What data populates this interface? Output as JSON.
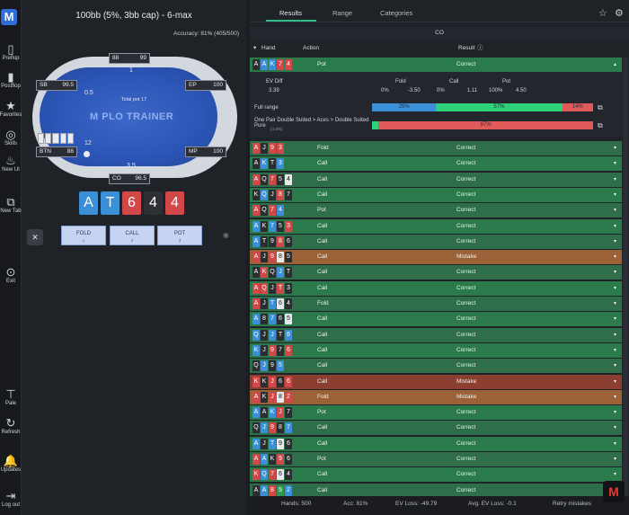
{
  "rail": {
    "logo": "M",
    "items": [
      {
        "label": "Preflop",
        "icon": "preflop-icon",
        "glyph": "▯"
      },
      {
        "label": "Postflop",
        "icon": "postflop-icon",
        "glyph": "▮"
      },
      {
        "label": "Favorites",
        "icon": "star-icon",
        "glyph": "★"
      },
      {
        "label": "Skills",
        "icon": "target-icon",
        "glyph": "◎"
      },
      {
        "label": "New UI",
        "icon": "flame-icon",
        "glyph": "♨"
      },
      {
        "label": "New Tab",
        "icon": "external-icon",
        "glyph": "⧉"
      },
      {
        "label": "Exit",
        "icon": "exit-icon",
        "glyph": "⊙"
      },
      {
        "label": "Pale",
        "icon": "paint-icon",
        "glyph": "⊤"
      },
      {
        "label": "Refresh",
        "icon": "refresh-icon",
        "glyph": "↻"
      },
      {
        "label": "Updates",
        "icon": "bell-icon",
        "glyph": "🔔"
      },
      {
        "label": "Log out",
        "icon": "logout-icon",
        "glyph": "⇥"
      }
    ]
  },
  "game": {
    "title": "100bb (5%, 3bb cap) - 6-max",
    "accuracy": "Accuracy: 81% (405/500)",
    "total_pot": "Total pot 17",
    "logo": "PLO TRAINER",
    "seats": {
      "top": {
        "name": "88",
        "stack": "99"
      },
      "sb": {
        "name": "SB",
        "stack": "99.5"
      },
      "ep": {
        "name": "EP",
        "stack": "100"
      },
      "mp": {
        "name": "MP",
        "stack": "100"
      },
      "btn": {
        "name": "BTN",
        "stack": "88"
      },
      "co": {
        "name": "CO",
        "stack": "96.5"
      }
    },
    "bets": {
      "top": "1",
      "sb": "0.5",
      "btn": "12",
      "co": "3.5"
    },
    "hand": [
      {
        "rank": "A",
        "color": "b"
      },
      {
        "rank": "T",
        "color": "b"
      },
      {
        "rank": "6",
        "color": "r"
      },
      {
        "rank": "4",
        "color": "k"
      },
      {
        "rank": "4",
        "color": "r"
      }
    ],
    "actions": [
      {
        "label": "FOLD",
        "key": "1"
      },
      {
        "label": "CALL",
        "key": "2"
      },
      {
        "label": "POT",
        "key": "3"
      }
    ]
  },
  "tabs": [
    "Results",
    "Range",
    "Categories"
  ],
  "position": "CO",
  "columns": {
    "hand": "Hand",
    "action": "Action",
    "result": "Result"
  },
  "detail": {
    "ev_diff_label": "EV Diff",
    "ev_diff": "3.39",
    "fold": {
      "label": "Fold",
      "pct": "0%",
      "ev": "-3.50"
    },
    "call": {
      "label": "Call",
      "pct": "0%",
      "ev": "1.11"
    },
    "pot": {
      "label": "Pot",
      "pct": "100%",
      "ev": "4.50"
    },
    "full_range_label": "Full range",
    "full_range": {
      "blue": 29,
      "green": 57,
      "red": 14,
      "blue_label": "29%",
      "green_label": "57%",
      "red_label": "14%"
    },
    "category_label": "One Pair Double Suited > Aces > Double Suited Pure",
    "category_count": "(4.4%)",
    "category": {
      "green": 3,
      "red": 97,
      "red_label": "97%"
    }
  },
  "rows": [
    {
      "cards": [
        [
          "A",
          "k"
        ],
        [
          "A",
          "b"
        ],
        [
          "K",
          "b"
        ],
        [
          "7",
          "r"
        ],
        [
          "4",
          "r"
        ]
      ],
      "action": "Pot",
      "result": "Correct",
      "type": "ok",
      "open": true
    },
    {
      "cards": [
        [
          "A",
          "r"
        ],
        [
          "J",
          "k"
        ],
        [
          "9",
          "r"
        ],
        [
          "3",
          "r"
        ]
      ],
      "action": "Fold",
      "result": "Correct",
      "type": "ok"
    },
    {
      "cards": [
        [
          "A",
          "k"
        ],
        [
          "K",
          "b"
        ],
        [
          "T",
          "k"
        ],
        [
          "3",
          "b"
        ]
      ],
      "action": "Call",
      "result": "Correct",
      "type": "ok"
    },
    {
      "cards": [
        [
          "A",
          "r"
        ],
        [
          "Q",
          "k"
        ],
        [
          "7",
          "r"
        ],
        [
          "5",
          "k"
        ],
        [
          "4",
          "w"
        ]
      ],
      "action": "Call",
      "result": "Correct",
      "type": "ok"
    },
    {
      "cards": [
        [
          "K",
          "k"
        ],
        [
          "Q",
          "b"
        ],
        [
          "J",
          "k"
        ],
        [
          "8",
          "r"
        ],
        [
          "7",
          "k"
        ]
      ],
      "action": "Call",
      "result": "Correct",
      "type": "ok"
    },
    {
      "cards": [
        [
          "A",
          "r"
        ],
        [
          "Q",
          "k"
        ],
        [
          "7",
          "r"
        ],
        [
          "4",
          "b"
        ]
      ],
      "action": "Pot",
      "result": "Correct",
      "type": "ok"
    },
    {
      "cards": [
        [
          "A",
          "b"
        ],
        [
          "K",
          "k"
        ],
        [
          "7",
          "b"
        ],
        [
          "5",
          "k"
        ],
        [
          "3",
          "r"
        ]
      ],
      "action": "Call",
      "result": "Correct",
      "type": "ok"
    },
    {
      "cards": [
        [
          "A",
          "b"
        ],
        [
          "T",
          "k"
        ],
        [
          "9",
          "k"
        ],
        [
          "8",
          "r"
        ],
        [
          "6",
          "k"
        ]
      ],
      "action": "Call",
      "result": "Correct",
      "type": "ok"
    },
    {
      "cards": [
        [
          "A",
          "r"
        ],
        [
          "J",
          "k"
        ],
        [
          "9",
          "r"
        ],
        [
          "8",
          "w"
        ],
        [
          "5",
          "k"
        ]
      ],
      "action": "Call",
      "result": "Mistake",
      "type": "mistake-call"
    },
    {
      "cards": [
        [
          "A",
          "k"
        ],
        [
          "K",
          "r"
        ],
        [
          "Q",
          "k"
        ],
        [
          "J",
          "b"
        ],
        [
          "T",
          "k"
        ]
      ],
      "action": "Call",
      "result": "Correct",
      "type": "ok"
    },
    {
      "cards": [
        [
          "A",
          "r"
        ],
        [
          "Q",
          "r"
        ],
        [
          "J",
          "k"
        ],
        [
          "T",
          "r"
        ],
        [
          "3",
          "k"
        ]
      ],
      "action": "Call",
      "result": "Correct",
      "type": "ok"
    },
    {
      "cards": [
        [
          "A",
          "r"
        ],
        [
          "J",
          "k"
        ],
        [
          "T",
          "b"
        ],
        [
          "6",
          "w"
        ],
        [
          "4",
          "k"
        ]
      ],
      "action": "Fold",
      "result": "Correct",
      "type": "ok"
    },
    {
      "cards": [
        [
          "A",
          "b"
        ],
        [
          "8",
          "k"
        ],
        [
          "7",
          "b"
        ],
        [
          "6",
          "k"
        ],
        [
          "5",
          "w"
        ]
      ],
      "action": "Call",
      "result": "Correct",
      "type": "ok"
    },
    {
      "cards": [
        [
          "Q",
          "b"
        ],
        [
          "J",
          "k"
        ],
        [
          "J",
          "b"
        ],
        [
          "T",
          "k"
        ],
        [
          "6",
          "b"
        ]
      ],
      "action": "Call",
      "result": "Correct",
      "type": "ok"
    },
    {
      "cards": [
        [
          "K",
          "b"
        ],
        [
          "J",
          "k"
        ],
        [
          "9",
          "r"
        ],
        [
          "7",
          "k"
        ],
        [
          "6",
          "r"
        ]
      ],
      "action": "Call",
      "result": "Correct",
      "type": "ok"
    },
    {
      "cards": [
        [
          "Q",
          "k"
        ],
        [
          "J",
          "b"
        ],
        [
          "9",
          "k"
        ],
        [
          "5",
          "b"
        ]
      ],
      "action": "Call",
      "result": "Correct",
      "type": "ok"
    },
    {
      "cards": [
        [
          "K",
          "r"
        ],
        [
          "K",
          "k"
        ],
        [
          "J",
          "r"
        ],
        [
          "6",
          "k"
        ],
        [
          "6",
          "r"
        ]
      ],
      "action": "Call",
      "result": "Mistake",
      "type": "mistake-fold"
    },
    {
      "cards": [
        [
          "A",
          "r"
        ],
        [
          "K",
          "k"
        ],
        [
          "J",
          "r"
        ],
        [
          "8",
          "w"
        ],
        [
          "2",
          "r"
        ]
      ],
      "action": "Fold",
      "result": "Mistake",
      "type": "mistake-call"
    },
    {
      "cards": [
        [
          "A",
          "b"
        ],
        [
          "A",
          "k"
        ],
        [
          "K",
          "b"
        ],
        [
          "J",
          "r"
        ],
        [
          "7",
          "k"
        ]
      ],
      "action": "Pot",
      "result": "Correct",
      "type": "ok"
    },
    {
      "cards": [
        [
          "Q",
          "k"
        ],
        [
          "J",
          "b"
        ],
        [
          "9",
          "r"
        ],
        [
          "8",
          "k"
        ],
        [
          "7",
          "b"
        ]
      ],
      "action": "Call",
      "result": "Correct",
      "type": "ok"
    },
    {
      "cards": [
        [
          "A",
          "b"
        ],
        [
          "J",
          "k"
        ],
        [
          "T",
          "b"
        ],
        [
          "9",
          "w"
        ],
        [
          "6",
          "k"
        ]
      ],
      "action": "Call",
      "result": "Correct",
      "type": "ok"
    },
    {
      "cards": [
        [
          "A",
          "r"
        ],
        [
          "A",
          "b"
        ],
        [
          "K",
          "k"
        ],
        [
          "9",
          "r"
        ],
        [
          "6",
          "k"
        ]
      ],
      "action": "Pot",
      "result": "Correct",
      "type": "ok"
    },
    {
      "cards": [
        [
          "K",
          "r"
        ],
        [
          "Q",
          "b"
        ],
        [
          "7",
          "r"
        ],
        [
          "6",
          "w"
        ],
        [
          "4",
          "k"
        ]
      ],
      "action": "Call",
      "result": "Correct",
      "type": "ok"
    },
    {
      "cards": [
        [
          "A",
          "k"
        ],
        [
          "A",
          "b"
        ],
        [
          "8",
          "r"
        ],
        [
          "5",
          "g"
        ],
        [
          "2",
          "b"
        ]
      ],
      "action": "Call",
      "result": "Correct",
      "type": "ok"
    }
  ],
  "footer": {
    "hands": "Hands: 500",
    "acc": "Acc: 81%",
    "ev_loss": "EV Loss: -49.79",
    "avg_ev_loss": "Avg. EV Loss: -0.1",
    "retry": "Retry mistakes"
  },
  "corner_logo": "M"
}
